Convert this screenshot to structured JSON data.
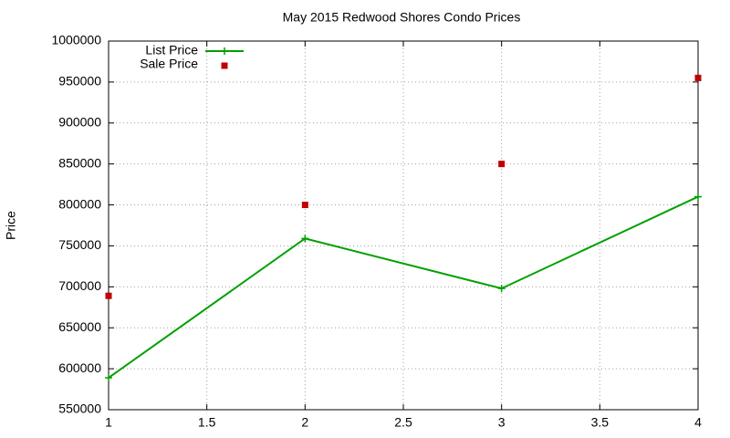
{
  "chart_data": {
    "type": "line",
    "title": "May 2015 Redwood Shores Condo Prices",
    "y_label": "Price",
    "x": [
      1,
      2,
      3,
      4
    ],
    "series": [
      {
        "name": "List Price",
        "color": "#00a000",
        "mode": "lines+markers",
        "values": [
          589000,
          759000,
          698000,
          810000
        ]
      },
      {
        "name": "Sale Price",
        "color": "#c00000",
        "mode": "markers",
        "values": [
          689000,
          800000,
          850000,
          955000
        ]
      }
    ],
    "xlim": [
      1,
      4
    ],
    "xticks": [
      1,
      1.5,
      2,
      2.5,
      3,
      3.5,
      4
    ],
    "ylim": [
      550000,
      1000000
    ],
    "yticks": [
      550000,
      600000,
      650000,
      700000,
      750000,
      800000,
      850000,
      900000,
      950000,
      1000000
    ],
    "grid": true,
    "legend_position": "top-left"
  }
}
